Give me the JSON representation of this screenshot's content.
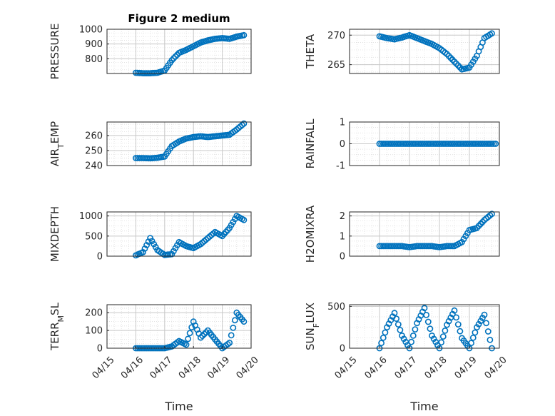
{
  "chart_data": [
    {
      "type": "scatter",
      "title": "Figure 2 medium",
      "ylabel": "PRESSURE",
      "ylim": [
        700,
        1000
      ],
      "yticks": [
        800,
        900,
        1000
      ],
      "x": [
        "04/16 00:00",
        "04/16 06:00",
        "04/16 12:00",
        "04/16 18:00",
        "04/17 00:00",
        "04/17 06:00",
        "04/17 12:00",
        "04/17 18:00",
        "04/18 00:00",
        "04/18 06:00",
        "04/18 12:00",
        "04/18 18:00",
        "04/19 00:00",
        "04/19 06:00",
        "04/19 12:00",
        "04/19 18:00"
      ],
      "values": [
        705,
        702,
        702,
        705,
        720,
        790,
        840,
        860,
        885,
        910,
        925,
        935,
        940,
        935,
        950,
        960
      ]
    },
    {
      "type": "scatter",
      "ylabel": "THETA",
      "ylim": [
        263.5,
        271
      ],
      "yticks": [
        265,
        270
      ],
      "x": [
        "04/16 00:00",
        "04/16 06:00",
        "04/16 12:00",
        "04/16 18:00",
        "04/17 00:00",
        "04/17 06:00",
        "04/17 12:00",
        "04/17 18:00",
        "04/18 00:00",
        "04/18 06:00",
        "04/18 12:00",
        "04/18 18:00",
        "04/19 00:00",
        "04/19 06:00",
        "04/19 12:00",
        "04/19 18:00"
      ],
      "values": [
        269.8,
        269.5,
        269.3,
        269.6,
        270.0,
        269.5,
        269.0,
        268.5,
        267.8,
        266.8,
        265.5,
        264.2,
        264.5,
        266.5,
        269.5,
        270.3
      ]
    },
    {
      "type": "scatter",
      "ylabel": "AIR_TEMP",
      "ylim": [
        240,
        269
      ],
      "yticks": [
        240,
        250,
        260
      ],
      "x": [
        "04/16 00:00",
        "04/16 06:00",
        "04/16 12:00",
        "04/16 18:00",
        "04/17 00:00",
        "04/17 06:00",
        "04/17 12:00",
        "04/17 18:00",
        "04/18 00:00",
        "04/18 06:00",
        "04/18 12:00",
        "04/18 18:00",
        "04/19 00:00",
        "04/19 06:00",
        "04/19 12:00",
        "04/19 18:00"
      ],
      "values": [
        245,
        245,
        244.8,
        245.2,
        246,
        253,
        256,
        258,
        259,
        259.5,
        259,
        259.5,
        260,
        260.5,
        264,
        268
      ]
    },
    {
      "type": "scatter",
      "ylabel": "RAINFALL",
      "ylim": [
        -1,
        1
      ],
      "yticks": [
        -1,
        0,
        1
      ],
      "x": [
        "04/16 00:00",
        "04/16 12:00",
        "04/17 00:00",
        "04/17 12:00",
        "04/18 00:00",
        "04/18 12:00",
        "04/19 00:00",
        "04/19 12:00",
        "04/19 22:00"
      ],
      "values": [
        0,
        0,
        0,
        0,
        0,
        0,
        0,
        0,
        0
      ]
    },
    {
      "type": "scatter",
      "ylabel": "MIXDEPTH",
      "ylim": [
        0,
        1100
      ],
      "yticks": [
        0,
        500,
        1000
      ],
      "x": [
        "04/16 00:00",
        "04/16 06:00",
        "04/16 12:00",
        "04/16 18:00",
        "04/17 00:00",
        "04/17 06:00",
        "04/17 12:00",
        "04/17 18:00",
        "04/18 00:00",
        "04/18 06:00",
        "04/18 12:00",
        "04/18 18:00",
        "04/19 00:00",
        "04/19 06:00",
        "04/19 12:00",
        "04/19 18:00"
      ],
      "values": [
        20,
        100,
        450,
        150,
        30,
        50,
        350,
        250,
        200,
        300,
        450,
        600,
        500,
        700,
        1000,
        900
      ]
    },
    {
      "type": "scatter",
      "ylabel": "H2OMIXRA",
      "ylim": [
        0,
        2.2
      ],
      "yticks": [
        0,
        1,
        2
      ],
      "x": [
        "04/16 00:00",
        "04/16 06:00",
        "04/16 12:00",
        "04/16 18:00",
        "04/17 00:00",
        "04/17 06:00",
        "04/17 12:00",
        "04/17 18:00",
        "04/18 00:00",
        "04/18 06:00",
        "04/18 12:00",
        "04/18 18:00",
        "04/19 00:00",
        "04/19 06:00",
        "04/19 12:00",
        "04/19 18:00"
      ],
      "values": [
        0.5,
        0.5,
        0.5,
        0.5,
        0.45,
        0.5,
        0.5,
        0.5,
        0.45,
        0.5,
        0.5,
        0.7,
        1.3,
        1.4,
        1.8,
        2.1
      ]
    },
    {
      "type": "scatter",
      "ylabel": "TERR_MSL",
      "ylim": [
        0,
        245
      ],
      "yticks": [
        0,
        100,
        200
      ],
      "x": [
        "04/16 00:00",
        "04/16 12:00",
        "04/17 00:00",
        "04/17 06:00",
        "04/17 12:00",
        "04/17 18:00",
        "04/18 00:00",
        "04/18 06:00",
        "04/18 12:00",
        "04/18 18:00",
        "04/19 00:00",
        "04/19 06:00",
        "04/19 12:00",
        "04/19 18:00"
      ],
      "values": [
        0,
        0,
        0,
        10,
        40,
        20,
        150,
        60,
        100,
        50,
        0,
        30,
        200,
        150
      ]
    },
    {
      "type": "scatter",
      "ylabel": "SUN_FLUX",
      "ylim": [
        0,
        520
      ],
      "yticks": [
        0,
        500
      ],
      "x": [
        "04/16 00:00",
        "04/16 06:00",
        "04/16 12:00",
        "04/16 18:00",
        "04/17 00:00",
        "04/17 06:00",
        "04/17 12:00",
        "04/17 18:00",
        "04/18 00:00",
        "04/18 06:00",
        "04/18 12:00",
        "04/18 18:00",
        "04/19 00:00",
        "04/19 06:00",
        "04/19 12:00",
        "04/19 18:00"
      ],
      "values": [
        0,
        250,
        420,
        150,
        0,
        300,
        480,
        150,
        0,
        280,
        450,
        120,
        0,
        250,
        400,
        0
      ]
    }
  ],
  "xaxis": {
    "label": "Time",
    "ticks": [
      "04/15",
      "04/16",
      "04/17",
      "04/18",
      "04/19",
      "04/20"
    ]
  },
  "colors": {
    "marker": "#0072BD",
    "grid": "#d9d9d9",
    "axis": "#262626"
  }
}
